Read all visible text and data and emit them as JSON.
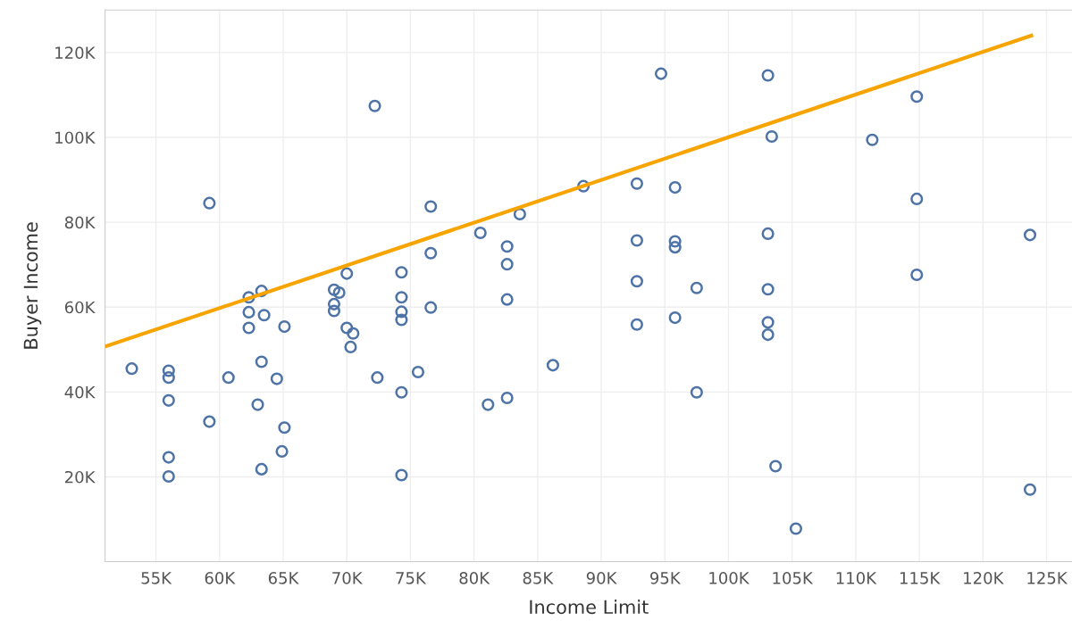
{
  "chart_data": {
    "type": "scatter",
    "xlabel": "Income Limit",
    "ylabel": "Buyer Income",
    "xlim": [
      51,
      127
    ],
    "ylim": [
      0,
      130
    ],
    "xticks": [
      {
        "value": 55,
        "label": "55K"
      },
      {
        "value": 60,
        "label": "60K"
      },
      {
        "value": 65,
        "label": "65K"
      },
      {
        "value": 70,
        "label": "70K"
      },
      {
        "value": 75,
        "label": "75K"
      },
      {
        "value": 80,
        "label": "80K"
      },
      {
        "value": 85,
        "label": "85K"
      },
      {
        "value": 90,
        "label": "90K"
      },
      {
        "value": 95,
        "label": "95K"
      },
      {
        "value": 100,
        "label": "100K"
      },
      {
        "value": 105,
        "label": "105K"
      },
      {
        "value": 110,
        "label": "110K"
      },
      {
        "value": 115,
        "label": "115K"
      },
      {
        "value": 120,
        "label": "120K"
      },
      {
        "value": 125,
        "label": "125K"
      }
    ],
    "yticks": [
      {
        "value": 20,
        "label": "20K"
      },
      {
        "value": 40,
        "label": "40K"
      },
      {
        "value": 60,
        "label": "60K"
      },
      {
        "value": 80,
        "label": "80K"
      },
      {
        "value": 100,
        "label": "100K"
      },
      {
        "value": 120,
        "label": "120K"
      }
    ],
    "grid": true,
    "series": [
      {
        "color": "#4e73a6",
        "marker": "circle",
        "x": [
          72.2,
          59.2,
          53.1,
          56.0,
          56.0,
          56.0,
          56.0,
          56.0,
          59.2,
          60.7,
          63.3,
          63.0,
          63.3,
          62.3,
          63.3,
          62.3,
          63.5,
          62.3,
          65.1,
          64.5,
          65.1,
          64.9,
          69.0,
          69.4,
          69.0,
          69.0,
          70.0,
          70.0,
          70.5,
          70.3,
          72.4,
          74.3,
          74.3,
          74.3,
          74.3,
          76.6,
          76.6,
          76.6,
          75.6,
          74.3,
          74.3,
          80.5,
          82.6,
          82.6,
          82.6,
          83.6,
          81.1,
          82.6,
          86.2,
          88.6,
          92.8,
          92.8,
          92.8,
          92.8,
          94.7,
          95.8,
          95.8,
          95.8,
          95.8,
          97.5,
          97.5,
          103.1,
          103.4,
          103.1,
          103.1,
          103.1,
          103.1,
          103.7,
          105.3,
          111.3,
          114.8,
          114.8,
          114.8,
          123.7,
          123.7
        ],
        "values": [
          107.4,
          84.5,
          45.5,
          45.0,
          43.4,
          38.0,
          24.6,
          20.1,
          33.0,
          43.4,
          47.1,
          37.0,
          21.8,
          62.3,
          63.8,
          58.8,
          58.1,
          55.1,
          55.4,
          43.1,
          31.6,
          26.0,
          64.1,
          63.4,
          60.7,
          59.1,
          67.9,
          55.1,
          53.8,
          50.6,
          43.4,
          68.2,
          62.3,
          58.9,
          57.0,
          83.7,
          72.7,
          59.9,
          44.7,
          39.9,
          20.4,
          77.5,
          74.3,
          70.1,
          61.8,
          81.9,
          37.0,
          38.6,
          46.3,
          88.5,
          89.1,
          75.7,
          66.1,
          55.9,
          115.0,
          88.2,
          75.5,
          74.1,
          57.5,
          64.5,
          39.9,
          114.6,
          100.2,
          77.3,
          64.2,
          56.4,
          53.5,
          22.5,
          7.8,
          99.4,
          109.6,
          85.5,
          67.6,
          77.0,
          17.0
        ]
      },
      {
        "type": "line",
        "color": "#f7a400",
        "marker": "none",
        "x": [
          51.1,
          123.8
        ],
        "values": [
          50.8,
          124.0
        ]
      }
    ]
  }
}
